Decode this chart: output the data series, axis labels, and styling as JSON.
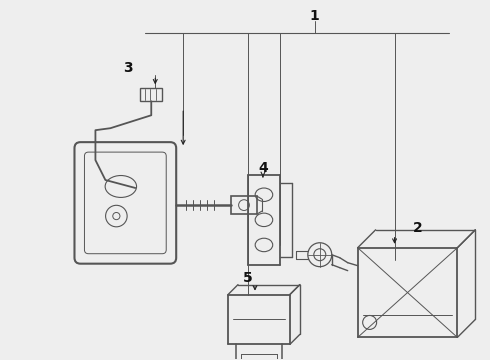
{
  "bg_color": "#eeeeee",
  "line_color": "#555555",
  "text_color": "#111111",
  "fig_width": 4.9,
  "fig_height": 3.6,
  "dpi": 100
}
